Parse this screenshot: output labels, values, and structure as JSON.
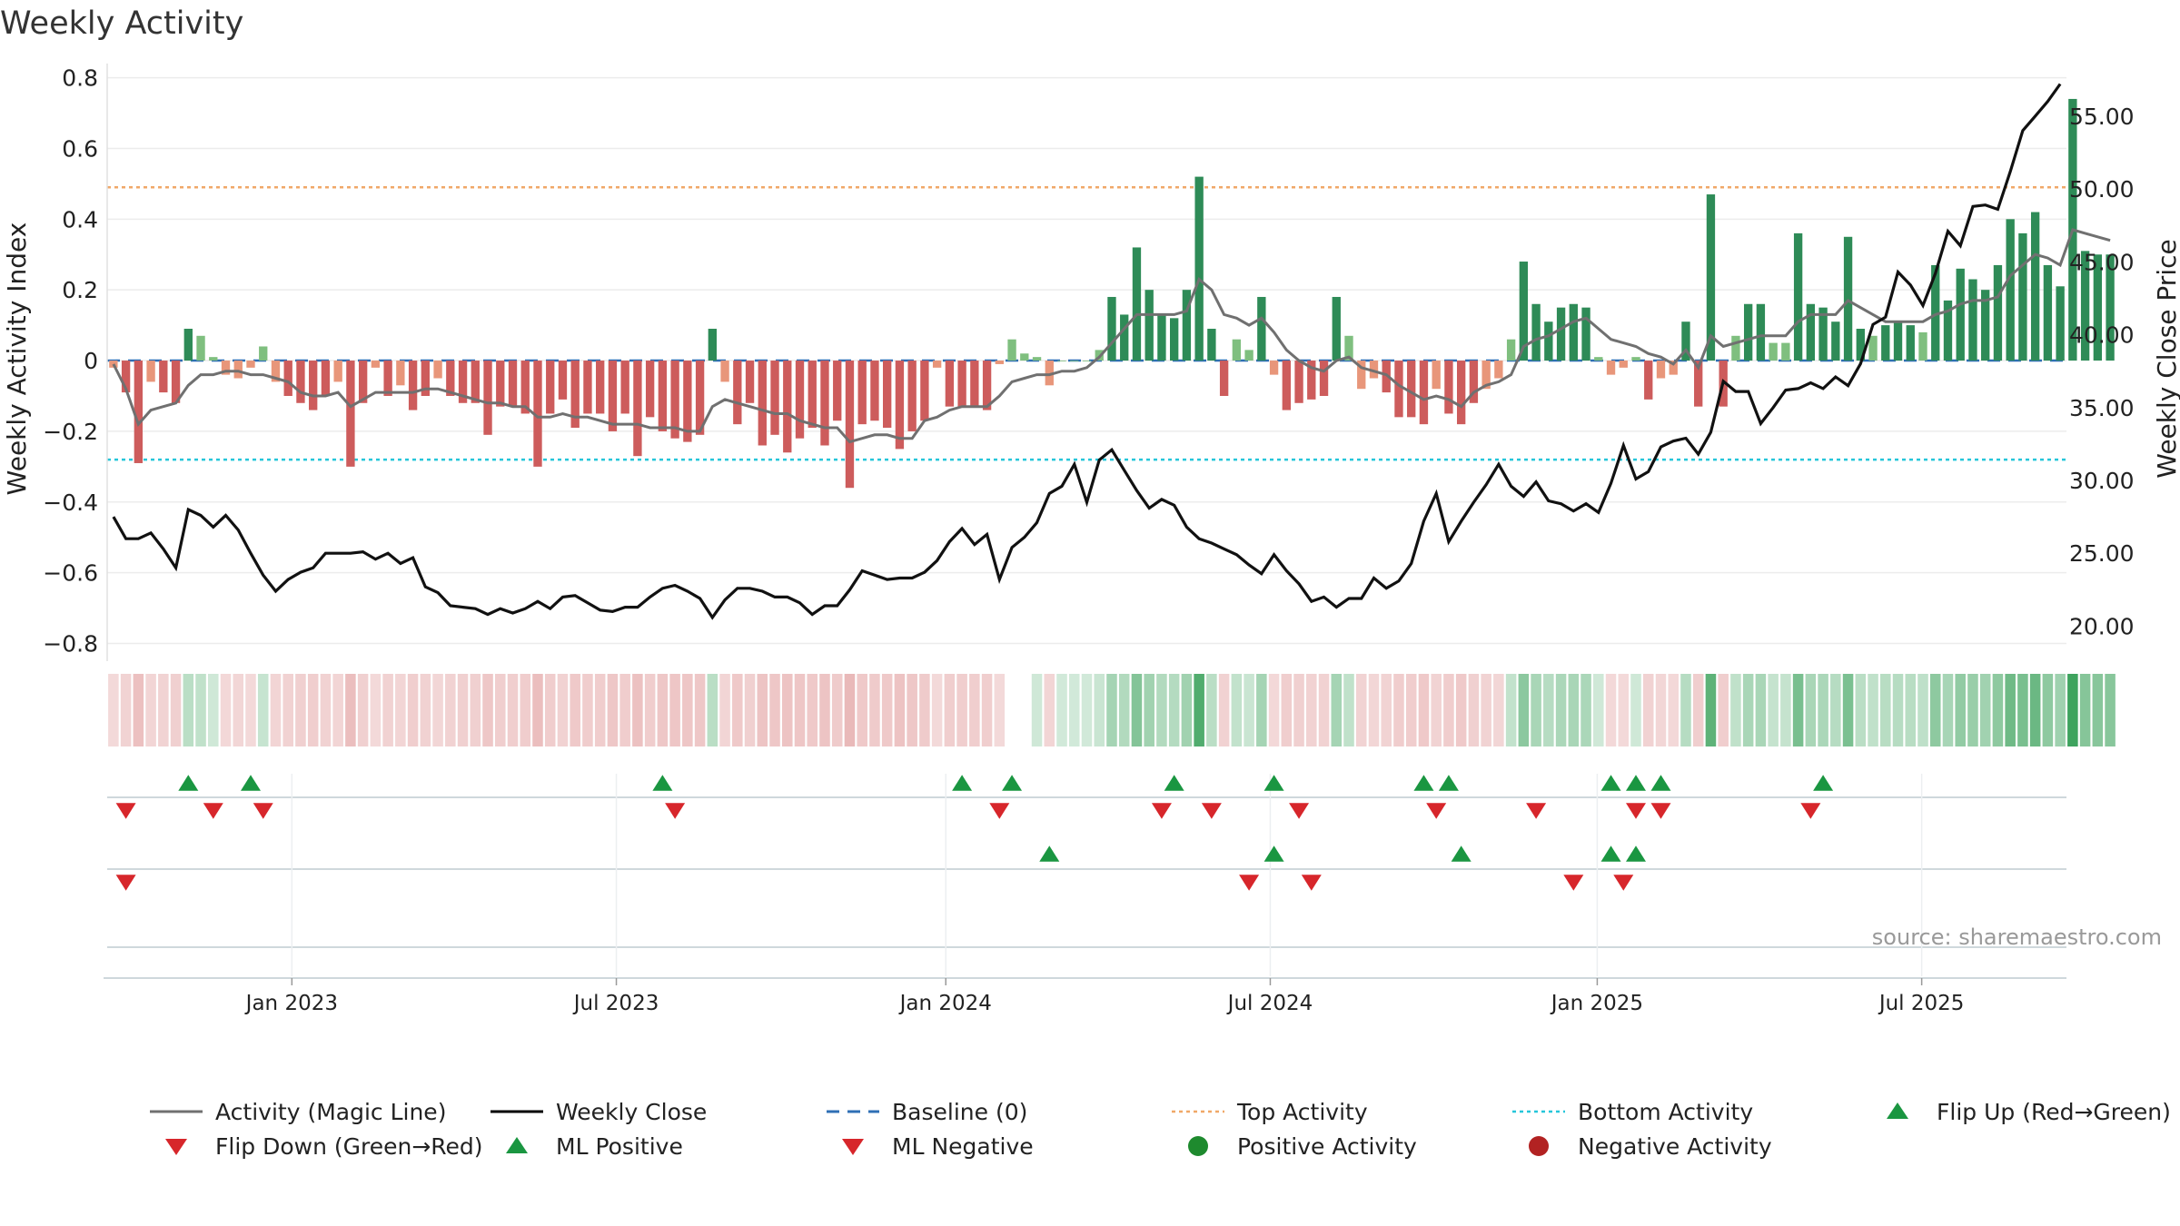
{
  "chart_data": {
    "type": "bar",
    "title": "Weekly Activity",
    "ylabel_left": "Weekly Activity Index",
    "ylabel_right": "Weekly Close Price",
    "source": "source: sharemaestro.com",
    "y_left": {
      "min": -0.85,
      "max": 0.84,
      "ticks": [
        0.8,
        0.6,
        0.4,
        0.2,
        0,
        -0.2,
        -0.4,
        -0.6,
        -0.8
      ],
      "tick_labels": [
        "0.8",
        "0.6",
        "0.4",
        "0.2",
        "0",
        "−0.2",
        "−0.4",
        "−0.6",
        "−0.8"
      ]
    },
    "y_right": {
      "min": 17.6,
      "max": 58.6,
      "ticks": [
        55,
        50,
        45,
        40,
        35,
        30,
        25,
        20
      ],
      "tick_labels": [
        "55.00",
        "50.00",
        "45.00",
        "40.00",
        "35.00",
        "30.00",
        "25.00",
        "20.00"
      ]
    },
    "x_range": [
      0,
      157
    ],
    "x_ticks": [
      {
        "week": 14.8,
        "label": "Jan 2023"
      },
      {
        "week": 40.8,
        "label": "Jul 2023"
      },
      {
        "week": 67.2,
        "label": "Jan 2024"
      },
      {
        "week": 93.2,
        "label": "Jul 2024"
      },
      {
        "week": 119.4,
        "label": "Jan 2025"
      },
      {
        "week": 145.4,
        "label": "Jul 2025"
      }
    ],
    "top_activity": 0.49,
    "bottom_activity": -0.28,
    "baseline": 0,
    "activity": [
      -0.02,
      -0.09,
      -0.29,
      -0.06,
      -0.09,
      -0.12,
      0.09,
      0.07,
      0.01,
      -0.04,
      -0.05,
      -0.02,
      0.04,
      -0.06,
      -0.1,
      -0.12,
      -0.14,
      -0.1,
      -0.06,
      -0.3,
      -0.12,
      -0.02,
      -0.1,
      -0.07,
      -0.14,
      -0.1,
      -0.05,
      -0.1,
      -0.12,
      -0.12,
      -0.21,
      -0.13,
      -0.13,
      -0.15,
      -0.3,
      -0.15,
      -0.11,
      -0.19,
      -0.15,
      -0.15,
      -0.2,
      -0.15,
      -0.27,
      -0.16,
      -0.2,
      -0.22,
      -0.23,
      -0.21,
      0.09,
      -0.06,
      -0.18,
      -0.12,
      -0.24,
      -0.21,
      -0.26,
      -0.22,
      -0.19,
      -0.24,
      -0.17,
      -0.36,
      -0.18,
      -0.17,
      -0.19,
      -0.25,
      -0.2,
      -0.17,
      -0.02,
      -0.13,
      -0.13,
      -0.13,
      -0.14,
      -0.01,
      0.06,
      0.02,
      0.01,
      -0.07,
      0,
      0,
      0,
      0.03,
      0.18,
      0.13,
      0.32,
      0.2,
      0.13,
      0.12,
      0.2,
      0.52,
      0.09,
      -0.1,
      0.06,
      0.03,
      0.18,
      -0.04,
      -0.14,
      -0.12,
      -0.11,
      -0.1,
      0.18,
      0.07,
      -0.08,
      -0.05,
      -0.09,
      -0.16,
      -0.16,
      -0.18,
      -0.08,
      -0.15,
      -0.18,
      -0.12,
      -0.08,
      -0.05,
      0.06,
      0.28,
      0.16,
      0.11,
      0.15,
      0.16,
      0.15,
      0.01,
      -0.04,
      -0.02,
      0.01,
      -0.11,
      -0.05,
      -0.04,
      0.11,
      -0.13,
      0.47,
      -0.13,
      0.07,
      0.16,
      0.16,
      0.05,
      0.05,
      0.36,
      0.16,
      0.15,
      0.11,
      0.35,
      0.09,
      0.07,
      0.1,
      0.11,
      0.1,
      0.08,
      0.27,
      0.17,
      0.26,
      0.23,
      0.2,
      0.27,
      0.4,
      0.36,
      0.42,
      0.27,
      0.21,
      0.74,
      0.31,
      0.3,
      0.3
    ],
    "magic_line": [
      -0.01,
      -0.08,
      -0.18,
      -0.14,
      -0.13,
      -0.12,
      -0.07,
      -0.04,
      -0.04,
      -0.03,
      -0.03,
      -0.04,
      -0.04,
      -0.05,
      -0.06,
      -0.09,
      -0.1,
      -0.1,
      -0.09,
      -0.13,
      -0.11,
      -0.09,
      -0.09,
      -0.09,
      -0.09,
      -0.08,
      -0.08,
      -0.09,
      -0.1,
      -0.11,
      -0.12,
      -0.12,
      -0.13,
      -0.13,
      -0.16,
      -0.16,
      -0.15,
      -0.16,
      -0.16,
      -0.17,
      -0.18,
      -0.18,
      -0.18,
      -0.19,
      -0.19,
      -0.19,
      -0.2,
      -0.2,
      -0.13,
      -0.11,
      -0.12,
      -0.13,
      -0.14,
      -0.15,
      -0.15,
      -0.17,
      -0.18,
      -0.19,
      -0.19,
      -0.23,
      -0.22,
      -0.21,
      -0.21,
      -0.22,
      -0.22,
      -0.17,
      -0.16,
      -0.14,
      -0.13,
      -0.13,
      -0.13,
      -0.1,
      -0.06,
      -0.05,
      -0.04,
      -0.04,
      -0.03,
      -0.03,
      -0.02,
      0.01,
      0.05,
      0.09,
      0.13,
      0.13,
      0.13,
      0.13,
      0.14,
      0.23,
      0.2,
      0.13,
      0.12,
      0.1,
      0.12,
      0.08,
      0.03,
      0.0,
      -0.02,
      -0.03,
      0.0,
      0.01,
      -0.02,
      -0.03,
      -0.04,
      -0.07,
      -0.09,
      -0.11,
      -0.1,
      -0.11,
      -0.13,
      -0.09,
      -0.07,
      -0.06,
      -0.04,
      0.04,
      0.06,
      0.07,
      0.09,
      0.11,
      0.12,
      0.09,
      0.06,
      0.05,
      0.04,
      0.02,
      0.01,
      -0.01,
      0.03,
      -0.02,
      0.07,
      0.04,
      0.05,
      0.06,
      0.07,
      0.07,
      0.07,
      0.11,
      0.13,
      0.13,
      0.13,
      0.17,
      0.15,
      0.13,
      0.11,
      0.11,
      0.11,
      0.11,
      0.13,
      0.14,
      0.16,
      0.17,
      0.17,
      0.18,
      0.24,
      0.27,
      0.3,
      0.29,
      0.27,
      0.37,
      0.36,
      0.35,
      0.34
    ],
    "weekly_close": [
      27.5,
      26,
      26,
      26.4,
      25.3,
      24,
      28,
      27.6,
      26.8,
      27.6,
      26.6,
      25,
      23.5,
      22.4,
      23.2,
      23.7,
      24,
      25,
      25,
      25,
      25.1,
      24.6,
      25,
      24.3,
      24.7,
      22.7,
      22.3,
      21.4,
      21.3,
      21.2,
      20.8,
      21.2,
      20.9,
      21.2,
      21.7,
      21.2,
      22,
      22.1,
      21.6,
      21.1,
      21,
      21.3,
      21.3,
      22,
      22.6,
      22.8,
      22.4,
      21.9,
      20.6,
      21.8,
      22.6,
      22.6,
      22.4,
      22,
      22,
      21.6,
      20.8,
      21.4,
      21.4,
      22.5,
      23.8,
      23.5,
      23.2,
      23.3,
      23.3,
      23.7,
      24.5,
      25.8,
      26.7,
      25.6,
      26.3,
      23.2,
      25.4,
      26.1,
      27.1,
      29.1,
      29.6,
      31.1,
      28.5,
      31.4,
      32.1,
      30.7,
      29.3,
      28.1,
      28.7,
      28.3,
      26.8,
      26,
      25.7,
      25.3,
      24.9,
      24.2,
      23.6,
      24.9,
      23.8,
      22.9,
      21.7,
      22,
      21.3,
      21.9,
      21.9,
      23.3,
      22.6,
      23.1,
      24.3,
      27.2,
      29.1,
      25.8,
      27.2,
      28.5,
      29.7,
      31.1,
      29.6,
      28.9,
      29.9,
      28.6,
      28.4,
      27.9,
      28.4,
      27.8,
      29.8,
      32.4,
      30.1,
      30.6,
      32.3,
      32.7,
      32.9,
      31.8,
      33.3,
      36.8,
      36.1,
      36.1,
      33.9,
      35,
      36.2,
      36.3,
      36.7,
      36.3,
      37.1,
      36.5,
      38,
      40.7,
      41.2,
      44.3,
      43.4,
      42,
      44.2,
      47.1,
      46.1,
      48.8,
      48.9,
      48.6,
      51.2,
      54,
      55,
      56,
      57.2
    ],
    "heat_strip": "Weekly activity heat strip",
    "flip_row1_up": [
      6,
      11,
      44,
      68,
      72,
      85,
      93,
      105,
      107,
      120,
      122,
      124,
      137
    ],
    "flip_row1_down": [
      1,
      8,
      12,
      45,
      71,
      84,
      88,
      95,
      106,
      114,
      122,
      124,
      136
    ],
    "flip_row2_up": [
      75,
      93,
      108,
      120,
      122
    ],
    "flip_row2_down": [
      1,
      91,
      96,
      117,
      121
    ],
    "legend": [
      {
        "label": "Activity (Magic Line)",
        "symbol": "line",
        "color": "#707070"
      },
      {
        "label": "Weekly Close",
        "symbol": "line",
        "color": "#000000"
      },
      {
        "label": "Baseline (0)",
        "symbol": "dash",
        "color": "#2f6fb5"
      },
      {
        "label": "Top Activity",
        "symbol": "dotted",
        "color": "#f0a868"
      },
      {
        "label": "Bottom Activity",
        "symbol": "dotted",
        "color": "#26c6da"
      },
      {
        "label": "Flip Up (Red→Green)",
        "symbol": "triangle-up",
        "color": "#1a9641"
      },
      {
        "label": "Flip Down (Green→Red)",
        "symbol": "triangle-down",
        "color": "#d7262b"
      },
      {
        "label": "ML Positive",
        "symbol": "triangle-up",
        "color": "#1a9641"
      },
      {
        "label": "ML Negative",
        "symbol": "triangle-down",
        "color": "#d7262b"
      },
      {
        "label": "Positive Activity",
        "symbol": "circle",
        "color": "#1e8a2e"
      },
      {
        "label": "Negative Activity",
        "symbol": "circle",
        "color": "#b22222"
      }
    ],
    "colors": {
      "pos_strong": "#2e8b57",
      "pos_weak": "#7fbf7f",
      "neg_strong": "#cd5c5c",
      "neg_weak": "#e8967a",
      "up_marker": "#1a9641",
      "down_marker": "#d7262b"
    }
  }
}
